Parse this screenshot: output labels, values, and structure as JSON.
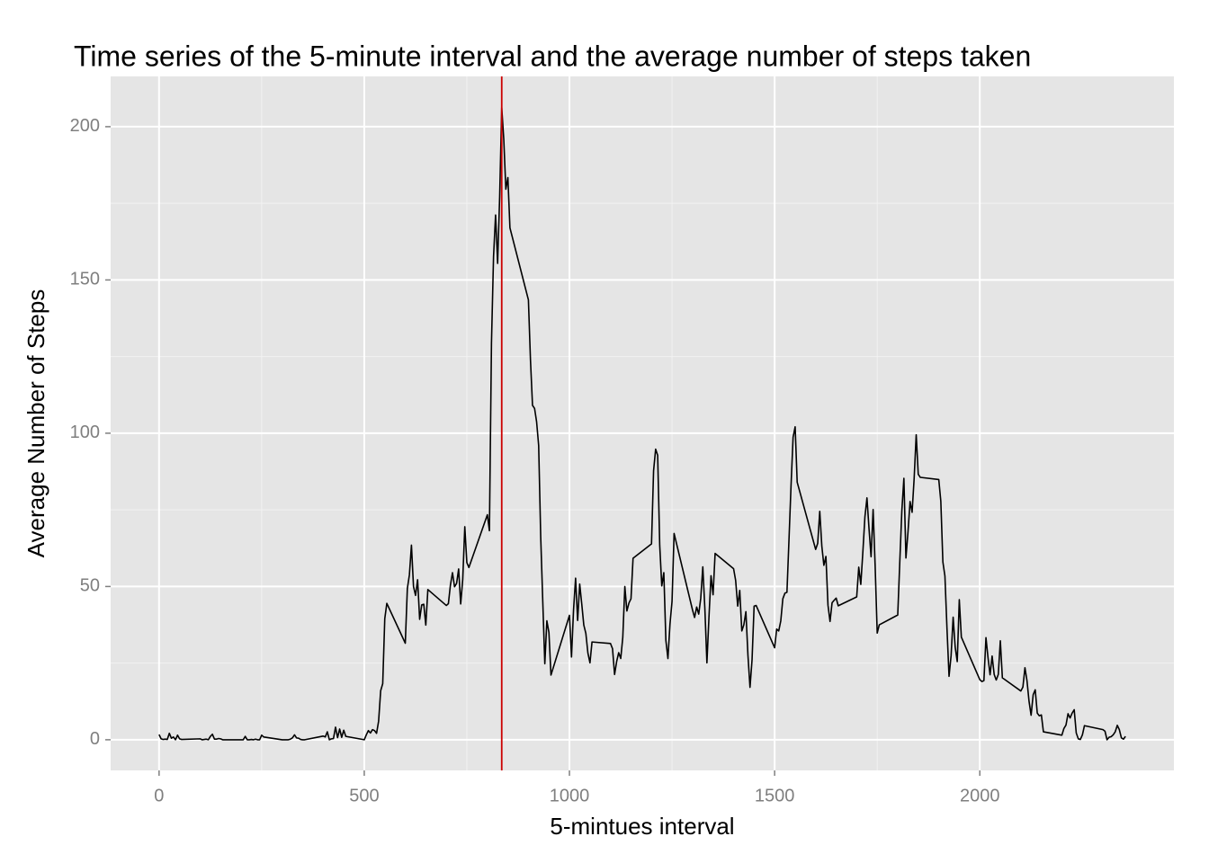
{
  "chart_data": {
    "type": "line",
    "title": "Time series of the 5-minute interval and the average number of steps taken",
    "x_label": "5-mintues interval",
    "y_label": "Average Number of Steps",
    "color": "#000000",
    "panel_color": "#e5e5e5",
    "grid": true,
    "xlim": [
      -118,
      2473
    ],
    "ylim": [
      -10,
      216.4
    ],
    "xticks": [
      0,
      500,
      1000,
      1500,
      2000
    ],
    "yticks": [
      0,
      50,
      100,
      150,
      200
    ],
    "vline": {
      "x": 835,
      "color": "#cc0000"
    },
    "x": [
      0,
      5,
      10,
      15,
      20,
      25,
      30,
      35,
      40,
      45,
      50,
      55,
      100,
      105,
      110,
      115,
      120,
      125,
      130,
      135,
      140,
      145,
      150,
      155,
      200,
      205,
      210,
      215,
      220,
      225,
      230,
      235,
      240,
      245,
      250,
      255,
      300,
      305,
      310,
      315,
      320,
      325,
      330,
      335,
      340,
      345,
      350,
      355,
      400,
      405,
      410,
      415,
      420,
      425,
      430,
      435,
      440,
      445,
      450,
      455,
      500,
      505,
      510,
      515,
      520,
      525,
      530,
      535,
      540,
      545,
      550,
      555,
      600,
      605,
      610,
      615,
      620,
      625,
      630,
      635,
      640,
      645,
      650,
      655,
      700,
      705,
      710,
      715,
      720,
      725,
      730,
      735,
      740,
      745,
      750,
      755,
      800,
      805,
      810,
      815,
      820,
      825,
      830,
      835,
      840,
      845,
      850,
      855,
      900,
      905,
      910,
      915,
      920,
      925,
      930,
      935,
      940,
      945,
      950,
      955,
      1000,
      1005,
      1010,
      1015,
      1020,
      1025,
      1030,
      1035,
      1040,
      1045,
      1050,
      1055,
      1100,
      1105,
      1110,
      1115,
      1120,
      1125,
      1130,
      1135,
      1140,
      1145,
      1150,
      1155,
      1200,
      1205,
      1210,
      1215,
      1220,
      1225,
      1230,
      1235,
      1240,
      1245,
      1250,
      1255,
      1300,
      1305,
      1310,
      1315,
      1320,
      1325,
      1330,
      1335,
      1340,
      1345,
      1350,
      1355,
      1400,
      1405,
      1410,
      1415,
      1420,
      1425,
      1430,
      1435,
      1440,
      1445,
      1450,
      1455,
      1500,
      1505,
      1510,
      1515,
      1520,
      1525,
      1530,
      1535,
      1540,
      1545,
      1550,
      1555,
      1600,
      1605,
      1610,
      1615,
      1620,
      1625,
      1630,
      1635,
      1640,
      1645,
      1650,
      1655,
      1700,
      1705,
      1710,
      1715,
      1720,
      1725,
      1730,
      1735,
      1740,
      1745,
      1750,
      1755,
      1800,
      1805,
      1810,
      1815,
      1820,
      1825,
      1830,
      1835,
      1840,
      1845,
      1850,
      1855,
      1900,
      1905,
      1910,
      1915,
      1920,
      1925,
      1930,
      1935,
      1940,
      1945,
      1950,
      1955,
      2000,
      2005,
      2010,
      2015,
      2020,
      2025,
      2030,
      2035,
      2040,
      2045,
      2050,
      2055,
      2100,
      2105,
      2110,
      2115,
      2120,
      2125,
      2130,
      2135,
      2140,
      2145,
      2150,
      2155,
      2200,
      2205,
      2210,
      2215,
      2220,
      2225,
      2230,
      2235,
      2240,
      2245,
      2250,
      2255,
      2300,
      2305,
      2310,
      2315,
      2320,
      2325,
      2330,
      2335,
      2340,
      2345,
      2350,
      2355
    ],
    "values": [
      1.7,
      0.3,
      0.1,
      0.2,
      0.1,
      2.1,
      0.5,
      0.9,
      0,
      1.5,
      0.3,
      0.1,
      0.3,
      0,
      0.1,
      0.2,
      0,
      1.1,
      1.8,
      0.2,
      0.2,
      0.4,
      0.3,
      0,
      0,
      0,
      1.1,
      0,
      0,
      0.1,
      0,
      0.2,
      0,
      0,
      1.5,
      0.9,
      0,
      0,
      0,
      0,
      0.2,
      0.6,
      1.6,
      0.6,
      0.5,
      0.1,
      0,
      0,
      1.2,
      0.9,
      2.6,
      0,
      0.3,
      0.4,
      4.1,
      0.7,
      3.5,
      0.8,
      3.1,
      1.1,
      0,
      1.6,
      3.0,
      2.2,
      3.3,
      3.0,
      2.1,
      6.1,
      16.0,
      18.3,
      39.5,
      44.5,
      31.5,
      49.3,
      53.8,
      63.5,
      50.0,
      47.1,
      52.2,
      39.3,
      44.0,
      44.2,
      37.4,
      49.0,
      43.8,
      44.4,
      50.5,
      54.5,
      49.9,
      51.0,
      55.7,
      44.3,
      52.3,
      69.5,
      57.8,
      56.2,
      73.4,
      68.2,
      129.4,
      157.5,
      171.2,
      155.4,
      177.3,
      206.2,
      195.9,
      179.6,
      183.4,
      167.0,
      143.5,
      124.0,
      109.1,
      108.1,
      103.7,
      96.0,
      66.2,
      45.2,
      24.8,
      38.8,
      35.0,
      21.1,
      40.6,
      27.0,
      42.4,
      52.7,
      38.9,
      50.8,
      44.3,
      37.4,
      34.7,
      28.3,
      25.1,
      31.9,
      31.4,
      29.7,
      21.3,
      25.5,
      28.4,
      26.5,
      33.4,
      50.0,
      42.0,
      44.6,
      46.0,
      59.2,
      63.9,
      87.7,
      94.8,
      92.8,
      63.4,
      50.2,
      54.5,
      32.4,
      26.5,
      37.7,
      45.1,
      67.3,
      42.3,
      39.9,
      43.3,
      41.0,
      46.2,
      56.4,
      42.8,
      25.1,
      40.0,
      53.5,
      47.3,
      60.8,
      55.8,
      52.0,
      43.6,
      48.7,
      35.5,
      37.5,
      41.8,
      27.5,
      17.1,
      26.1,
      43.6,
      43.8,
      30.0,
      36.1,
      35.5,
      38.8,
      46.0,
      47.8,
      48.1,
      65.3,
      82.9,
      98.7,
      102.1,
      84.0,
      62.1,
      64.1,
      74.5,
      63.2,
      56.9,
      59.8,
      43.9,
      38.6,
      44.7,
      45.5,
      46.2,
      43.7,
      46.6,
      56.3,
      50.7,
      61.2,
      72.7,
      78.9,
      68.9,
      59.7,
      75.1,
      56.5,
      34.8,
      37.5,
      40.7,
      58.0,
      74.7,
      85.3,
      59.3,
      67.8,
      77.7,
      74.2,
      85.3,
      99.5,
      86.6,
      85.6,
      84.9,
      77.8,
      58.0,
      53.4,
      36.3,
      20.7,
      27.4,
      40.0,
      30.2,
      25.5,
      45.7,
      33.5,
      19.6,
      19.0,
      19.3,
      33.3,
      26.8,
      21.2,
      27.3,
      21.3,
      19.5,
      21.3,
      32.3,
      20.2,
      15.9,
      17.2,
      23.5,
      19.2,
      12.5,
      8.0,
      14.7,
      16.3,
      8.7,
      7.8,
      8.1,
      2.6,
      1.5,
      3.7,
      4.8,
      8.5,
      7.1,
      8.7,
      9.8,
      2.2,
      0.3,
      0.1,
      1.6,
      4.6,
      3.3,
      2.8,
      0,
      0.8,
      1.0,
      1.6,
      2.6,
      4.7,
      3.3,
      0.6,
      0.2,
      1.1
    ]
  }
}
